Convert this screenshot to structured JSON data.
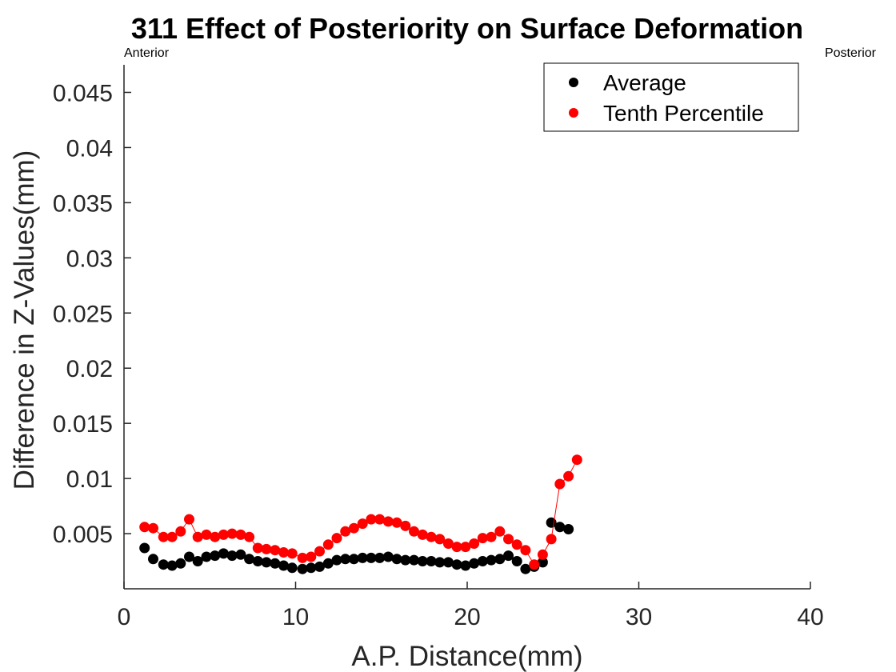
{
  "chart_data": {
    "type": "scatter",
    "title": "311  Effect of Posteriority on Surface Deformation",
    "xlabel": "A.P. Distance(mm)",
    "ylabel": "Difference in Z-Values(mm)",
    "xlim": [
      0,
      40
    ],
    "ylim": [
      0,
      0.0475
    ],
    "x_ticks": [
      0,
      10,
      20,
      30,
      40
    ],
    "y_ticks": [
      0.005,
      0.01,
      0.015,
      0.02,
      0.025,
      0.03,
      0.035,
      0.04,
      0.045
    ],
    "x_tick_labels": [
      "0",
      "10",
      "20",
      "30",
      "40"
    ],
    "y_tick_labels": [
      "0.005",
      "0.01",
      "0.015",
      "0.02",
      "0.025",
      "0.03",
      "0.035",
      "0.04",
      "0.045"
    ],
    "annotations": {
      "left": "Anterior",
      "right": "Posterior"
    },
    "legend_position": "top-right",
    "grid": false,
    "series": [
      {
        "name": "Average",
        "color": "#000000",
        "line": false,
        "x": [
          1.2,
          1.7,
          2.3,
          2.8,
          3.3,
          3.8,
          4.3,
          4.8,
          5.3,
          5.8,
          6.3,
          6.8,
          7.3,
          7.8,
          8.3,
          8.8,
          9.3,
          9.8,
          10.4,
          10.9,
          11.4,
          11.9,
          12.4,
          12.9,
          13.4,
          13.9,
          14.4,
          14.9,
          15.4,
          15.9,
          16.4,
          16.9,
          17.4,
          17.9,
          18.4,
          18.9,
          19.4,
          19.9,
          20.4,
          20.9,
          21.4,
          21.9,
          22.4,
          22.9,
          23.4,
          23.9,
          24.4,
          24.9,
          25.4,
          25.9,
          26.4
        ],
        "y": [
          0.0037,
          0.0027,
          0.0022,
          0.0021,
          0.0023,
          0.0029,
          0.0025,
          0.0029,
          0.003,
          0.0032,
          0.003,
          0.0031,
          0.0027,
          0.0025,
          0.0024,
          0.0023,
          0.0021,
          0.0019,
          0.0018,
          0.0019,
          0.002,
          0.0023,
          0.0026,
          0.0027,
          0.0027,
          0.0028,
          0.0028,
          0.0028,
          0.0029,
          0.0027,
          0.0026,
          0.0026,
          0.0025,
          0.0025,
          0.0024,
          0.0024,
          0.0022,
          0.0021,
          0.0023,
          0.0025,
          0.0026,
          0.0027,
          0.003,
          0.0025,
          0.0018,
          0.002,
          0.0024,
          0.006,
          0.0056,
          0.0054,
          null
        ]
      },
      {
        "name": "Tenth Percentile",
        "color": "#ff0000",
        "line": true,
        "x": [
          1.2,
          1.7,
          2.3,
          2.8,
          3.3,
          3.8,
          4.3,
          4.8,
          5.3,
          5.8,
          6.3,
          6.8,
          7.3,
          7.8,
          8.3,
          8.8,
          9.3,
          9.8,
          10.4,
          10.9,
          11.4,
          11.9,
          12.4,
          12.9,
          13.4,
          13.9,
          14.4,
          14.9,
          15.4,
          15.9,
          16.4,
          16.9,
          17.4,
          17.9,
          18.4,
          18.9,
          19.4,
          19.9,
          20.4,
          20.9,
          21.4,
          21.9,
          22.4,
          22.9,
          23.4,
          23.9,
          24.4,
          24.9,
          25.4,
          25.9,
          26.4
        ],
        "y": [
          0.0056,
          0.0055,
          0.0047,
          0.0047,
          0.0052,
          0.0063,
          0.0047,
          0.0049,
          0.0047,
          0.0049,
          0.005,
          0.0049,
          0.0047,
          0.0037,
          0.0036,
          0.0035,
          0.0033,
          0.0032,
          0.0028,
          0.0029,
          0.0034,
          0.004,
          0.0046,
          0.0052,
          0.0055,
          0.0059,
          0.0063,
          0.0063,
          0.0061,
          0.006,
          0.0057,
          0.0052,
          0.0049,
          0.0047,
          0.0045,
          0.0041,
          0.0038,
          0.0038,
          0.0041,
          0.0046,
          0.0047,
          0.0052,
          0.0045,
          0.004,
          0.0035,
          0.0022,
          0.0031,
          0.0045,
          0.0095,
          0.0102,
          0.0117
        ]
      }
    ]
  }
}
